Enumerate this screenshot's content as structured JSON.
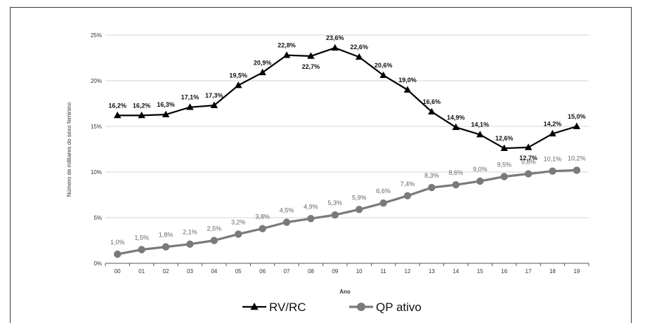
{
  "chart_data": {
    "type": "line",
    "xlabel": "Ano",
    "ylabel": "Número de militares do sexo feminino",
    "ylim": [
      0,
      25
    ],
    "yticks": [
      "0%",
      "5%",
      "10%",
      "15%",
      "20%",
      "25%"
    ],
    "categories": [
      "00",
      "01",
      "02",
      "03",
      "04",
      "05",
      "06",
      "07",
      "08",
      "09",
      "10",
      "11",
      "12",
      "13",
      "14",
      "15",
      "16",
      "17",
      "18",
      "19"
    ],
    "grid": "horizontal",
    "legend_position": "bottom",
    "series": [
      {
        "name": "RV/RC",
        "color": "#000000",
        "marker": "triangle",
        "values": [
          16.2,
          16.2,
          16.3,
          17.1,
          17.3,
          19.5,
          20.9,
          22.8,
          22.7,
          23.6,
          22.6,
          20.6,
          19.0,
          16.6,
          14.9,
          14.1,
          12.6,
          12.7,
          14.2,
          15.0
        ],
        "labels": [
          "16,2%",
          "16,2%",
          "16,3%",
          "17,1%",
          "17,3%",
          "19,5%",
          "20,9%",
          "22,8%",
          "22,7%",
          "23,6%",
          "22,6%",
          "20,6%",
          "19,0%",
          "16,6%",
          "14,9%",
          "14,1%",
          "12,6%",
          "12,7%",
          "14,2%",
          "15,0%"
        ]
      },
      {
        "name": "QP ativo",
        "color": "#7a7a7a",
        "marker": "circle",
        "values": [
          1.0,
          1.5,
          1.8,
          2.1,
          2.5,
          3.2,
          3.8,
          4.5,
          4.9,
          5.3,
          5.9,
          6.6,
          7.4,
          8.3,
          8.6,
          9.0,
          9.5,
          9.8,
          10.1,
          10.2
        ],
        "labels": [
          "1,0%",
          "1,5%",
          "1,8%",
          "2,1%",
          "2,5%",
          "3,2%",
          "3,8%",
          "4,5%",
          "4,9%",
          "5,3%",
          "5,9%",
          "6,6%",
          "7,4%",
          "8,3%",
          "8,6%",
          "9,0%",
          "9,5%",
          "9,8%",
          "10,1%",
          "10,2%"
        ]
      }
    ]
  }
}
